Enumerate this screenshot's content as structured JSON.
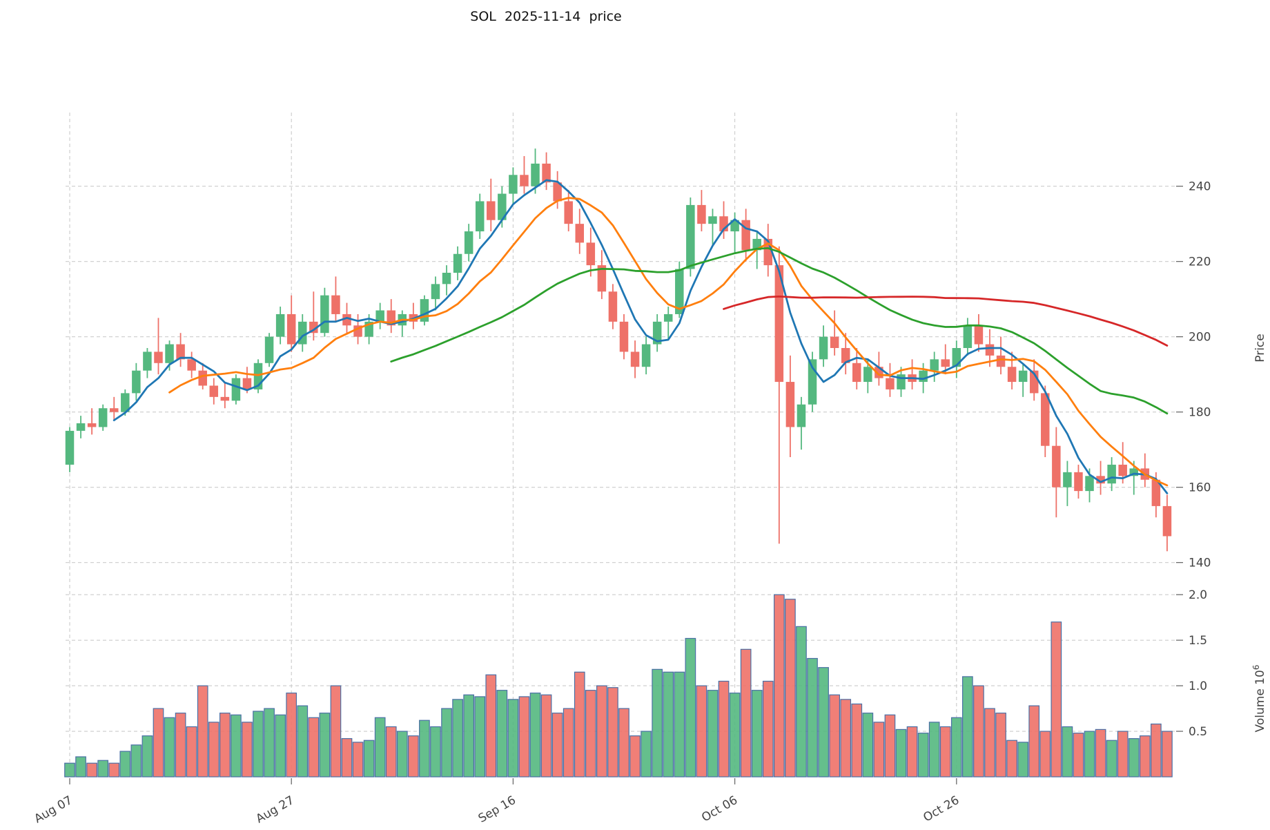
{
  "title": "SOL  2025-11-14  price",
  "axes": {
    "price_label": "Price",
    "volume_label": "Volume",
    "volume_exponent_base": "10",
    "volume_exponent": "6",
    "price_ticks": [
      240,
      220,
      200,
      180,
      160,
      140
    ],
    "volume_ticks": [
      2.0,
      1.5,
      1.0,
      0.5
    ]
  },
  "chart_data": {
    "type": "candlestick",
    "title": "SOL  2025-11-14  price",
    "subtitle": "",
    "start_date": "2025-08-07",
    "end_date": "2025-11-14",
    "price_ylim": [
      137,
      257
    ],
    "volume_ylim": [
      0,
      2.1
    ],
    "volume_units": "10^6",
    "grid": true,
    "legend": false,
    "x_tick_labels": [
      "Aug 07",
      "Aug 27",
      "Sep 16",
      "Oct 06",
      "Oct 26"
    ],
    "x_tick_indices": [
      0,
      20,
      40,
      60,
      80
    ],
    "colors": {
      "up": "#54b87f",
      "down": "#ee7168",
      "volume_edge": "#4a6fa5",
      "grid": "#cbcbcb",
      "tick_text": "#434343"
    },
    "moving_averages": [
      {
        "name": "SMA5",
        "window": 5,
        "color": "#1f77b4"
      },
      {
        "name": "SMA10",
        "window": 10,
        "color": "#ff7f0e"
      },
      {
        "name": "SMA30",
        "window": 30,
        "color": "#2ca02c"
      },
      {
        "name": "SMA60",
        "window": 60,
        "color": "#d62728"
      }
    ],
    "ohlcv_columns": [
      "open",
      "high",
      "low",
      "close",
      "volume_millions"
    ],
    "ohlcv": [
      [
        166,
        176,
        164,
        175,
        0.15
      ],
      [
        175,
        179,
        173,
        177,
        0.22
      ],
      [
        177,
        181,
        174,
        176,
        0.15
      ],
      [
        176,
        182,
        175,
        181,
        0.18
      ],
      [
        181,
        184,
        178,
        180,
        0.15
      ],
      [
        180,
        186,
        179,
        185,
        0.28
      ],
      [
        185,
        193,
        183,
        191,
        0.35
      ],
      [
        191,
        197,
        189,
        196,
        0.45
      ],
      [
        196,
        205,
        190,
        193,
        0.75
      ],
      [
        193,
        199,
        191,
        198,
        0.65
      ],
      [
        198,
        201,
        192,
        194,
        0.7
      ],
      [
        194,
        196,
        189,
        191,
        0.55
      ],
      [
        191,
        193,
        186,
        187,
        1.0
      ],
      [
        187,
        189,
        182,
        184,
        0.6
      ],
      [
        184,
        188,
        181,
        183,
        0.7
      ],
      [
        183,
        190,
        182,
        189,
        0.68
      ],
      [
        189,
        192,
        185,
        186,
        0.6
      ],
      [
        186,
        194,
        185,
        193,
        0.72
      ],
      [
        193,
        201,
        192,
        200,
        0.75
      ],
      [
        200,
        208,
        198,
        206,
        0.68
      ],
      [
        206,
        211,
        196,
        198,
        0.92
      ],
      [
        198,
        206,
        196,
        204,
        0.78
      ],
      [
        204,
        212,
        199,
        201,
        0.65
      ],
      [
        201,
        213,
        200,
        211,
        0.7
      ],
      [
        211,
        216,
        204,
        206,
        1.0
      ],
      [
        206,
        209,
        201,
        203,
        0.42
      ],
      [
        203,
        206,
        198,
        200,
        0.38
      ],
      [
        200,
        206,
        198,
        204,
        0.4
      ],
      [
        204,
        209,
        202,
        207,
        0.65
      ],
      [
        207,
        210,
        201,
        203,
        0.55
      ],
      [
        203,
        207,
        200,
        206,
        0.5
      ],
      [
        206,
        209,
        202,
        204,
        0.45
      ],
      [
        204,
        211,
        203,
        210,
        0.62
      ],
      [
        210,
        216,
        207,
        214,
        0.55
      ],
      [
        214,
        219,
        211,
        217,
        0.75
      ],
      [
        217,
        224,
        215,
        222,
        0.85
      ],
      [
        222,
        230,
        220,
        228,
        0.9
      ],
      [
        228,
        238,
        226,
        236,
        0.88
      ],
      [
        236,
        242,
        228,
        231,
        1.12
      ],
      [
        231,
        240,
        229,
        238,
        0.95
      ],
      [
        238,
        245,
        235,
        243,
        0.85
      ],
      [
        243,
        248,
        238,
        240,
        0.88
      ],
      [
        240,
        250,
        238,
        246,
        0.92
      ],
      [
        246,
        249,
        239,
        241,
        0.9
      ],
      [
        241,
        244,
        234,
        236,
        0.7
      ],
      [
        236,
        239,
        228,
        230,
        0.75
      ],
      [
        230,
        234,
        222,
        225,
        1.15
      ],
      [
        225,
        229,
        216,
        219,
        0.95
      ],
      [
        219,
        223,
        210,
        212,
        1.0
      ],
      [
        212,
        214,
        202,
        204,
        0.98
      ],
      [
        204,
        206,
        194,
        196,
        0.75
      ],
      [
        196,
        199,
        189,
        192,
        0.45
      ],
      [
        192,
        200,
        190,
        198,
        0.5
      ],
      [
        198,
        206,
        196,
        204,
        1.18
      ],
      [
        204,
        208,
        199,
        206,
        1.15
      ],
      [
        206,
        220,
        205,
        218,
        1.15
      ],
      [
        218,
        237,
        216,
        235,
        1.52
      ],
      [
        235,
        239,
        228,
        230,
        1.0
      ],
      [
        230,
        234,
        224,
        232,
        0.95
      ],
      [
        232,
        236,
        226,
        228,
        1.05
      ],
      [
        228,
        233,
        222,
        231,
        0.92
      ],
      [
        231,
        234,
        220,
        223,
        1.4
      ],
      [
        223,
        228,
        218,
        226,
        0.95
      ],
      [
        226,
        230,
        216,
        219,
        1.05
      ],
      [
        219,
        224,
        145,
        188,
        2.0
      ],
      [
        188,
        195,
        168,
        176,
        1.95
      ],
      [
        176,
        184,
        170,
        182,
        1.65
      ],
      [
        182,
        196,
        180,
        194,
        1.3
      ],
      [
        194,
        203,
        192,
        200,
        1.2
      ],
      [
        200,
        207,
        195,
        197,
        0.9
      ],
      [
        197,
        201,
        190,
        193,
        0.85
      ],
      [
        193,
        197,
        186,
        188,
        0.8
      ],
      [
        188,
        194,
        185,
        192,
        0.7
      ],
      [
        192,
        196,
        187,
        189,
        0.6
      ],
      [
        189,
        193,
        184,
        186,
        0.68
      ],
      [
        186,
        192,
        184,
        190,
        0.52
      ],
      [
        190,
        194,
        186,
        188,
        0.55
      ],
      [
        188,
        193,
        185,
        191,
        0.48
      ],
      [
        191,
        196,
        188,
        194,
        0.6
      ],
      [
        194,
        198,
        190,
        192,
        0.55
      ],
      [
        192,
        199,
        189,
        197,
        0.65
      ],
      [
        197,
        205,
        195,
        203,
        1.1
      ],
      [
        203,
        206,
        196,
        198,
        1.0
      ],
      [
        198,
        202,
        192,
        195,
        0.75
      ],
      [
        195,
        200,
        190,
        192,
        0.7
      ],
      [
        192,
        196,
        186,
        188,
        0.4
      ],
      [
        188,
        193,
        184,
        191,
        0.38
      ],
      [
        191,
        194,
        183,
        185,
        0.78
      ],
      [
        185,
        187,
        168,
        171,
        0.5
      ],
      [
        171,
        176,
        152,
        160,
        1.7
      ],
      [
        160,
        167,
        155,
        164,
        0.55
      ],
      [
        164,
        166,
        157,
        159,
        0.48
      ],
      [
        159,
        165,
        156,
        163,
        0.5
      ],
      [
        163,
        167,
        158,
        161,
        0.52
      ],
      [
        161,
        168,
        159,
        166,
        0.4
      ],
      [
        166,
        172,
        161,
        163,
        0.5
      ],
      [
        163,
        167,
        158,
        165,
        0.42
      ],
      [
        165,
        169,
        160,
        162,
        0.45
      ],
      [
        162,
        164,
        152,
        155,
        0.58
      ],
      [
        155,
        158,
        143,
        147,
        0.5
      ]
    ]
  }
}
